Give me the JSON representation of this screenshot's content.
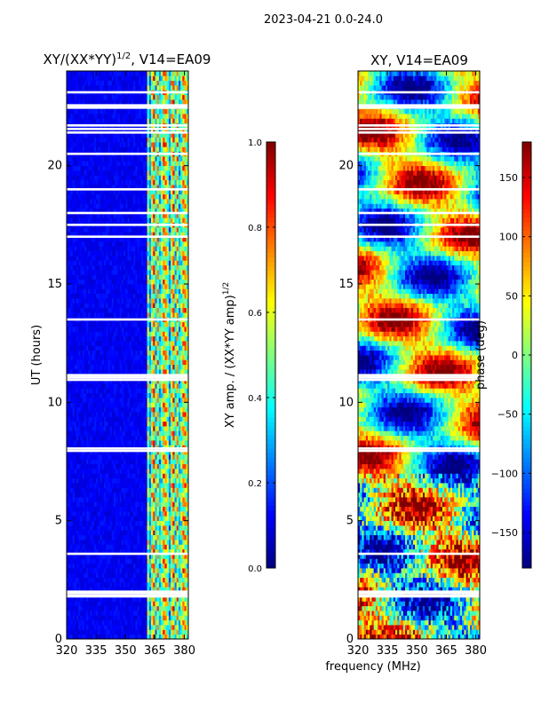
{
  "chart_data": {
    "figure_title": "2023-04-21 0.0-24.0",
    "xlabel_shared": "frequency (MHz)",
    "panels": [
      {
        "id": "amp",
        "type": "heatmap",
        "title_main": "XY/(XX*YY)",
        "title_sup": "1/2",
        "title_tail": ", V14=EA09",
        "ylabel": "UT (hours)",
        "xlim": [
          320,
          382
        ],
        "ylim": [
          0,
          24
        ],
        "xticks": [
          320,
          335,
          350,
          365,
          380
        ],
        "yticks": [
          0,
          5,
          10,
          15,
          20
        ],
        "gap_hours": [
          1.8,
          1.85,
          1.95,
          2.0,
          3.6,
          7.95,
          8.05,
          10.95,
          11.05,
          11.15,
          13.5,
          17.0,
          17.5,
          18.0,
          19.0,
          20.5,
          21.4,
          21.55,
          21.7,
          22.45,
          22.55,
          23.1
        ]
      },
      {
        "id": "phase",
        "type": "heatmap",
        "title": "XY, V14=EA09",
        "xlim": [
          320,
          382
        ],
        "ylim": [
          0,
          24
        ],
        "xticks": [
          320,
          335,
          350,
          365,
          380
        ],
        "yticks": [
          0,
          5,
          10,
          15,
          20
        ],
        "gap_hours": [
          1.8,
          1.85,
          1.95,
          2.0,
          3.6,
          7.95,
          8.05,
          10.95,
          11.05,
          11.15,
          13.5,
          17.0,
          17.5,
          18.0,
          19.0,
          20.5,
          21.4,
          21.55,
          21.7,
          22.45,
          22.55,
          23.1
        ]
      }
    ],
    "colorbars": [
      {
        "id": "amp-cbar",
        "label_main": "XY amp. / (XX*YY amp)",
        "label_sup": "1/2",
        "range": [
          0.0,
          1.0
        ],
        "ticks": [
          "0.0",
          "0.2",
          "0.4",
          "0.6",
          "0.8",
          "1.0"
        ],
        "tick_values": [
          0.0,
          0.2,
          0.4,
          0.6,
          0.8,
          1.0
        ],
        "colormap": "jet"
      },
      {
        "id": "phase-cbar",
        "label": "phase (deg)",
        "range": [
          -180,
          180
        ],
        "ticks": [
          "−150",
          "−100",
          "−50",
          "0",
          "50",
          "100",
          "150"
        ],
        "tick_values": [
          -150,
          -100,
          -50,
          0,
          50,
          100,
          150
        ],
        "colormap": "jet"
      }
    ]
  }
}
